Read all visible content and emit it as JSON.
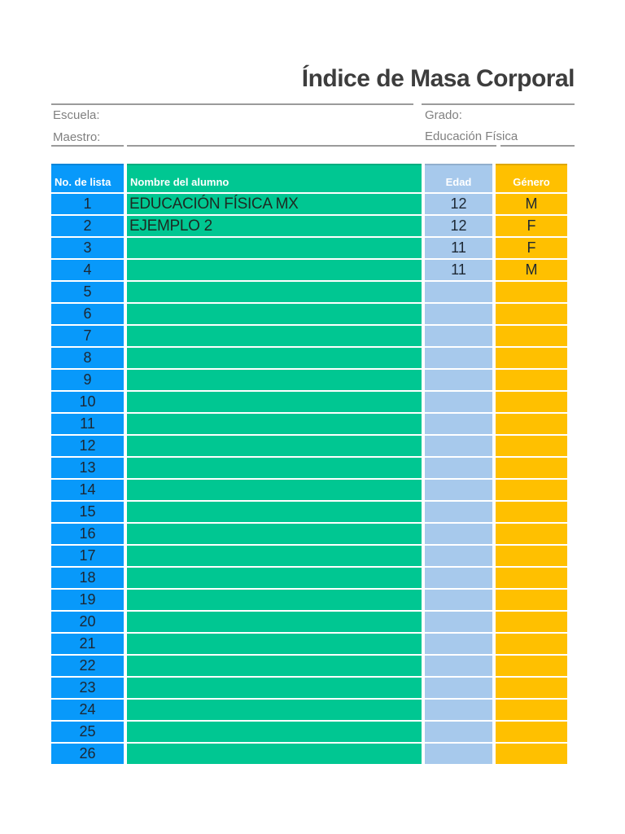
{
  "page": {
    "title": "Índice de Masa Corporal"
  },
  "form": {
    "escuela_label": "Escuela:",
    "escuela_value": "",
    "maestro_label": "Maestro:",
    "maestro_value": "",
    "grado_label": "Grado:",
    "grado_value": "",
    "materia_value": "Educación Física"
  },
  "table": {
    "columns": [
      {
        "key": "num",
        "label": "No. de lista"
      },
      {
        "key": "nombre",
        "label": "Nombre del alumno"
      },
      {
        "key": "edad",
        "label": "Edad"
      },
      {
        "key": "genero",
        "label": "Género"
      }
    ],
    "rows": [
      {
        "num": "1",
        "nombre": "EDUCACIÓN FÍSICA MX",
        "edad": "12",
        "genero": "M"
      },
      {
        "num": "2",
        "nombre": "EJEMPLO 2",
        "edad": "12",
        "genero": "F"
      },
      {
        "num": "3",
        "nombre": "",
        "edad": "11",
        "genero": "F"
      },
      {
        "num": "4",
        "nombre": "",
        "edad": "11",
        "genero": "M"
      },
      {
        "num": "5",
        "nombre": "",
        "edad": "",
        "genero": ""
      },
      {
        "num": "6",
        "nombre": "",
        "edad": "",
        "genero": ""
      },
      {
        "num": "7",
        "nombre": "",
        "edad": "",
        "genero": ""
      },
      {
        "num": "8",
        "nombre": "",
        "edad": "",
        "genero": ""
      },
      {
        "num": "9",
        "nombre": "",
        "edad": "",
        "genero": ""
      },
      {
        "num": "10",
        "nombre": "",
        "edad": "",
        "genero": ""
      },
      {
        "num": "11",
        "nombre": "",
        "edad": "",
        "genero": ""
      },
      {
        "num": "12",
        "nombre": "",
        "edad": "",
        "genero": ""
      },
      {
        "num": "13",
        "nombre": "",
        "edad": "",
        "genero": ""
      },
      {
        "num": "14",
        "nombre": "",
        "edad": "",
        "genero": ""
      },
      {
        "num": "15",
        "nombre": "",
        "edad": "",
        "genero": ""
      },
      {
        "num": "16",
        "nombre": "",
        "edad": "",
        "genero": ""
      },
      {
        "num": "17",
        "nombre": "",
        "edad": "",
        "genero": ""
      },
      {
        "num": "18",
        "nombre": "",
        "edad": "",
        "genero": ""
      },
      {
        "num": "19",
        "nombre": "",
        "edad": "",
        "genero": ""
      },
      {
        "num": "20",
        "nombre": "",
        "edad": "",
        "genero": ""
      },
      {
        "num": "21",
        "nombre": "",
        "edad": "",
        "genero": ""
      },
      {
        "num": "22",
        "nombre": "",
        "edad": "",
        "genero": ""
      },
      {
        "num": "23",
        "nombre": "",
        "edad": "",
        "genero": ""
      },
      {
        "num": "24",
        "nombre": "",
        "edad": "",
        "genero": ""
      },
      {
        "num": "25",
        "nombre": "",
        "edad": "",
        "genero": ""
      },
      {
        "num": "26",
        "nombre": "",
        "edad": "",
        "genero": ""
      }
    ]
  },
  "colors": {
    "num_col": "#0899FA",
    "name_col": "#00C792",
    "edad_col": "#A7C9EC",
    "genero_col": "#FFC000",
    "header_text": "#FFFFFF",
    "cell_text": "#1C2733",
    "name_text": "#1D2A22",
    "title_text": "#3D3D3D",
    "label_text": "#808080",
    "rule_color": "#9B9B9B"
  }
}
